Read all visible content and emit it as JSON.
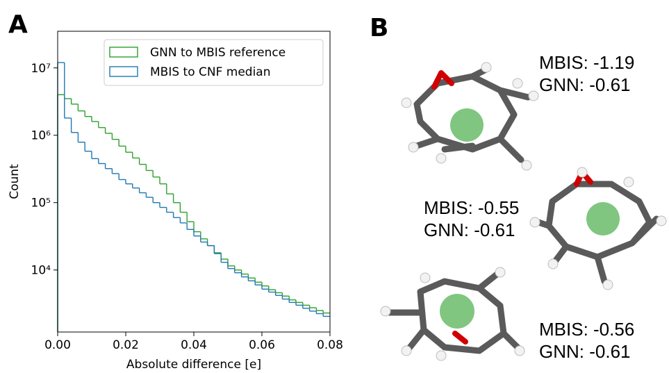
{
  "panels": {
    "a_label": "A",
    "b_label": "B"
  },
  "chart_data": {
    "type": "histogram",
    "log_y": true,
    "xlabel": "Absolute difference [e]",
    "ylabel": "Count",
    "bins": [
      0,
      0.002,
      0.004,
      0.006,
      0.008,
      0.01,
      0.012,
      0.014,
      0.016,
      0.018,
      0.02,
      0.022,
      0.024,
      0.026,
      0.028,
      0.03,
      0.032,
      0.034,
      0.036,
      0.038,
      0.04,
      0.042,
      0.044,
      0.046,
      0.048,
      0.05,
      0.052,
      0.054,
      0.056,
      0.058,
      0.06,
      0.062,
      0.064,
      0.066,
      0.068,
      0.07,
      0.072,
      0.074,
      0.076,
      0.078,
      0.08
    ],
    "series": [
      {
        "name": "GNN to MBIS reference",
        "color": "#2ca02c",
        "values": [
          4000000,
          3500000,
          2900000,
          2300000,
          1900000,
          1600000,
          1300000,
          1070000,
          870000,
          690000,
          560000,
          460000,
          370000,
          300000,
          240000,
          190000,
          135000,
          100000,
          72000,
          52000,
          37000,
          29000,
          23000,
          18000,
          14500,
          11500,
          10000,
          8700,
          7600,
          6600,
          5800,
          5100,
          4600,
          4100,
          3600,
          3300,
          3000,
          2750,
          2500,
          2300
        ]
      },
      {
        "name": "MBIS to CNF median",
        "color": "#1f77b4",
        "values": [
          12000000,
          1800000,
          1100000,
          790000,
          580000,
          450000,
          380000,
          320000,
          270000,
          220000,
          190000,
          165000,
          140000,
          120000,
          100000,
          85000,
          72000,
          60000,
          50000,
          40000,
          32000,
          26000,
          23000,
          17500,
          13000,
          10500,
          9100,
          7900,
          6900,
          6000,
          5200,
          4700,
          4200,
          3700,
          3300,
          3000,
          2700,
          2450,
          2250,
          2050
        ]
      }
    ],
    "xlim": [
      0,
      0.08
    ],
    "xticks": [
      {
        "value": 0,
        "label": "0.00"
      },
      {
        "value": 0.02,
        "label": "0.02"
      },
      {
        "value": 0.04,
        "label": "0.04"
      },
      {
        "value": 0.06,
        "label": "0.06"
      },
      {
        "value": 0.08,
        "label": "0.08"
      }
    ],
    "ylim": [
      1200,
      35000000
    ],
    "yticks": [
      {
        "value": 10000,
        "label": "10⁴"
      },
      {
        "value": 100000,
        "label": "10⁵"
      },
      {
        "value": 1000000,
        "label": "10⁶"
      },
      {
        "value": 10000000,
        "label": "10⁷"
      }
    ],
    "legend": "upper right",
    "grid": false
  },
  "molecules": [
    {
      "lines": [
        "MBIS: -1.19",
        "GNN: -0.61"
      ]
    },
    {
      "lines": [
        "MBIS: -0.55",
        "GNN: -0.61"
      ]
    },
    {
      "lines": [
        "MBIS: -0.56",
        "GNN: -0.61"
      ]
    }
  ]
}
